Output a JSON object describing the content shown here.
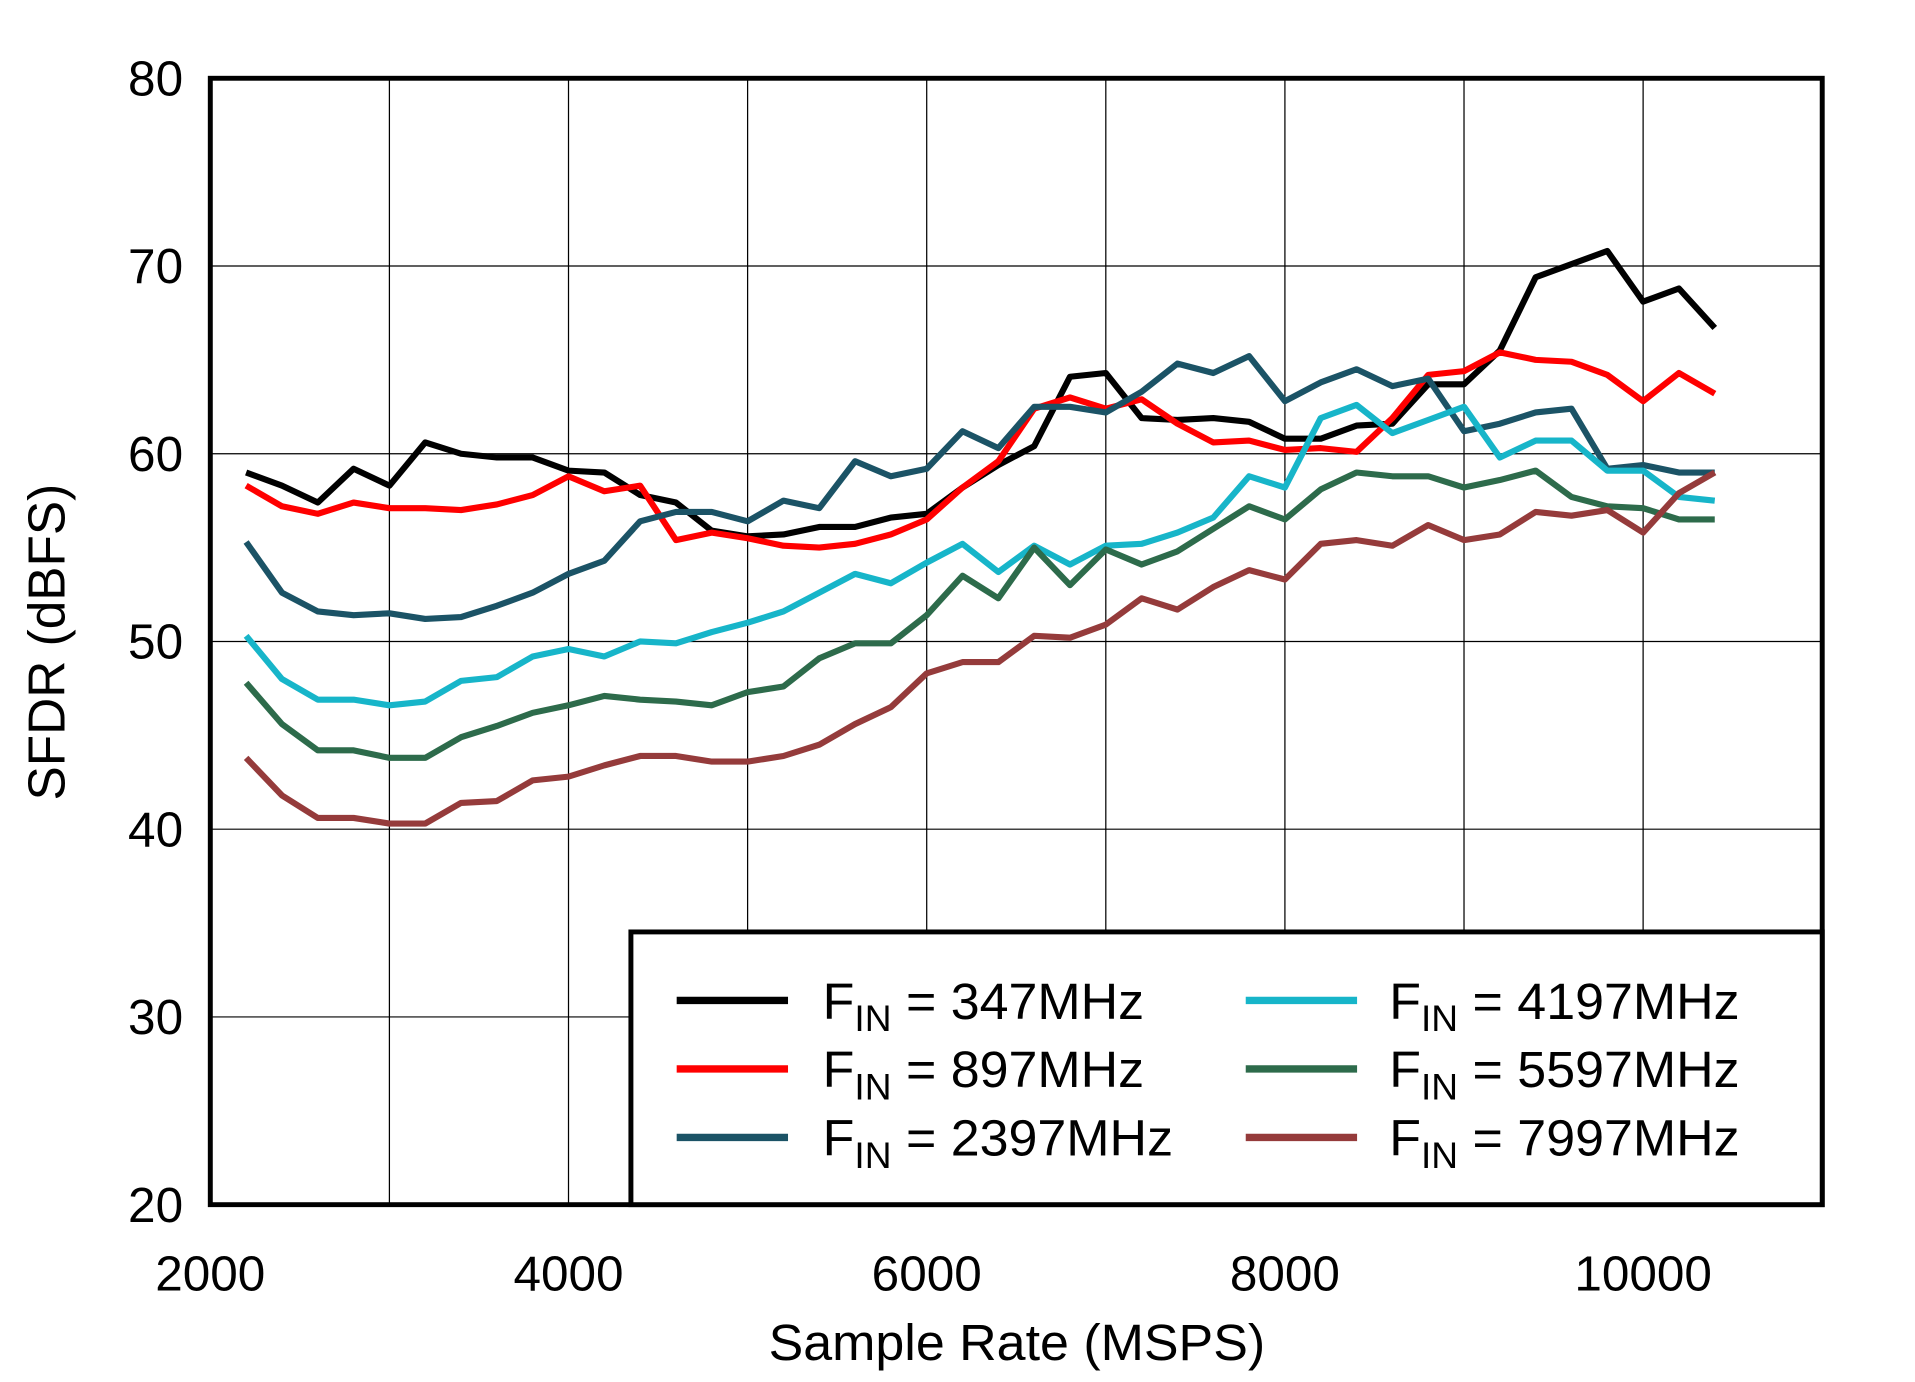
{
  "chart_data": {
    "type": "line",
    "title": "",
    "xlabel": "Sample Rate  (MSPS)",
    "ylabel": "SFDR  (dBFS)",
    "xlim": [
      2000,
      11000
    ],
    "ylim": [
      20,
      80
    ],
    "xticks": [
      2000,
      4000,
      6000,
      8000,
      10000
    ],
    "yticks": [
      20,
      30,
      40,
      50,
      60,
      70,
      80
    ],
    "grid": true,
    "legend_position": "bottom-right",
    "x": [
      2200,
      2400,
      2600,
      2800,
      3000,
      3200,
      3400,
      3600,
      3800,
      4000,
      4200,
      4400,
      4600,
      4800,
      5000,
      5200,
      5400,
      5600,
      5800,
      6000,
      6200,
      6400,
      6600,
      6800,
      7000,
      7200,
      7400,
      7600,
      7800,
      8000,
      8200,
      8400,
      8600,
      8800,
      9000,
      9200,
      9400,
      9600,
      9800,
      10000,
      10200,
      10400
    ],
    "series": [
      {
        "name_main": "F",
        "name_sub": "IN",
        "name_rest": " = 347MHz",
        "color": "#000000",
        "values": [
          59.0,
          58.3,
          57.4,
          59.2,
          58.3,
          60.6,
          60.0,
          59.8,
          59.8,
          59.1,
          59.0,
          57.8,
          57.4,
          55.9,
          55.6,
          55.7,
          56.1,
          56.1,
          56.6,
          56.8,
          58.2,
          59.4,
          60.4,
          64.1,
          64.3,
          61.9,
          61.8,
          61.9,
          61.7,
          60.8,
          60.8,
          61.5,
          61.6,
          63.7,
          63.7,
          65.5,
          69.4,
          70.1,
          70.8,
          68.1,
          68.8,
          66.7
        ]
      },
      {
        "name_main": "F",
        "name_sub": "IN",
        "name_rest": " = 897MHz",
        "color": "#ff0000",
        "values": [
          58.3,
          57.2,
          56.8,
          57.4,
          57.1,
          57.1,
          57.0,
          57.3,
          57.8,
          58.8,
          58.0,
          58.3,
          55.4,
          55.8,
          55.5,
          55.1,
          55.0,
          55.2,
          55.7,
          56.5,
          58.2,
          59.6,
          62.4,
          63.0,
          62.4,
          62.9,
          61.6,
          60.6,
          60.7,
          60.2,
          60.3,
          60.1,
          61.9,
          64.2,
          64.4,
          65.4,
          65.0,
          64.9,
          64.2,
          62.8,
          64.3,
          63.2
        ]
      },
      {
        "name_main": "F",
        "name_sub": "IN",
        "name_rest": " = 2397MHz",
        "color": "#1b5366",
        "values": [
          55.3,
          52.6,
          51.6,
          51.4,
          51.5,
          51.2,
          51.3,
          51.9,
          52.6,
          53.6,
          54.3,
          56.4,
          56.9,
          56.9,
          56.4,
          57.5,
          57.1,
          59.6,
          58.8,
          59.2,
          61.2,
          60.3,
          62.5,
          62.5,
          62.2,
          63.3,
          64.8,
          64.3,
          65.2,
          62.8,
          63.8,
          64.5,
          63.6,
          64.0,
          61.2,
          61.6,
          62.2,
          62.4,
          59.2,
          59.4,
          59.0,
          59.0
        ]
      },
      {
        "name_main": "F",
        "name_sub": "IN",
        "name_rest": " = 4197MHz",
        "color": "#17b5c9",
        "values": [
          50.3,
          48.0,
          46.9,
          46.9,
          46.6,
          46.8,
          47.9,
          48.1,
          49.2,
          49.6,
          49.2,
          50.0,
          49.9,
          50.5,
          51.0,
          51.6,
          52.6,
          53.6,
          53.1,
          54.2,
          55.2,
          53.7,
          55.1,
          54.1,
          55.1,
          55.2,
          55.8,
          56.6,
          58.8,
          58.2,
          61.9,
          62.6,
          61.1,
          61.8,
          62.5,
          59.8,
          60.7,
          60.7,
          59.1,
          59.1,
          57.7,
          57.5
        ]
      },
      {
        "name_main": "F",
        "name_sub": "IN",
        "name_rest": " = 5597MHz",
        "color": "#2d6b4b",
        "values": [
          47.8,
          45.6,
          44.2,
          44.2,
          43.8,
          43.8,
          44.9,
          45.5,
          46.2,
          46.6,
          47.1,
          46.9,
          46.8,
          46.6,
          47.3,
          47.6,
          49.1,
          49.9,
          49.9,
          51.4,
          53.5,
          52.3,
          55.0,
          53.0,
          54.9,
          54.1,
          54.8,
          56.0,
          57.2,
          56.5,
          58.1,
          59.0,
          58.8,
          58.8,
          58.2,
          58.6,
          59.1,
          57.7,
          57.2,
          57.1,
          56.5,
          56.5
        ]
      },
      {
        "name_main": "F",
        "name_sub": "IN",
        "name_rest": " = 7997MHz",
        "color": "#953b3b",
        "values": [
          43.8,
          41.8,
          40.6,
          40.6,
          40.3,
          40.3,
          41.4,
          41.5,
          42.6,
          42.8,
          43.4,
          43.9,
          43.9,
          43.6,
          43.6,
          43.9,
          44.5,
          45.6,
          46.5,
          48.3,
          48.9,
          48.9,
          50.3,
          50.2,
          50.9,
          52.3,
          51.7,
          52.9,
          53.8,
          53.3,
          55.2,
          55.4,
          55.1,
          56.2,
          55.4,
          55.7,
          56.9,
          56.7,
          57.0,
          55.8,
          57.9,
          59.0
        ]
      }
    ]
  }
}
